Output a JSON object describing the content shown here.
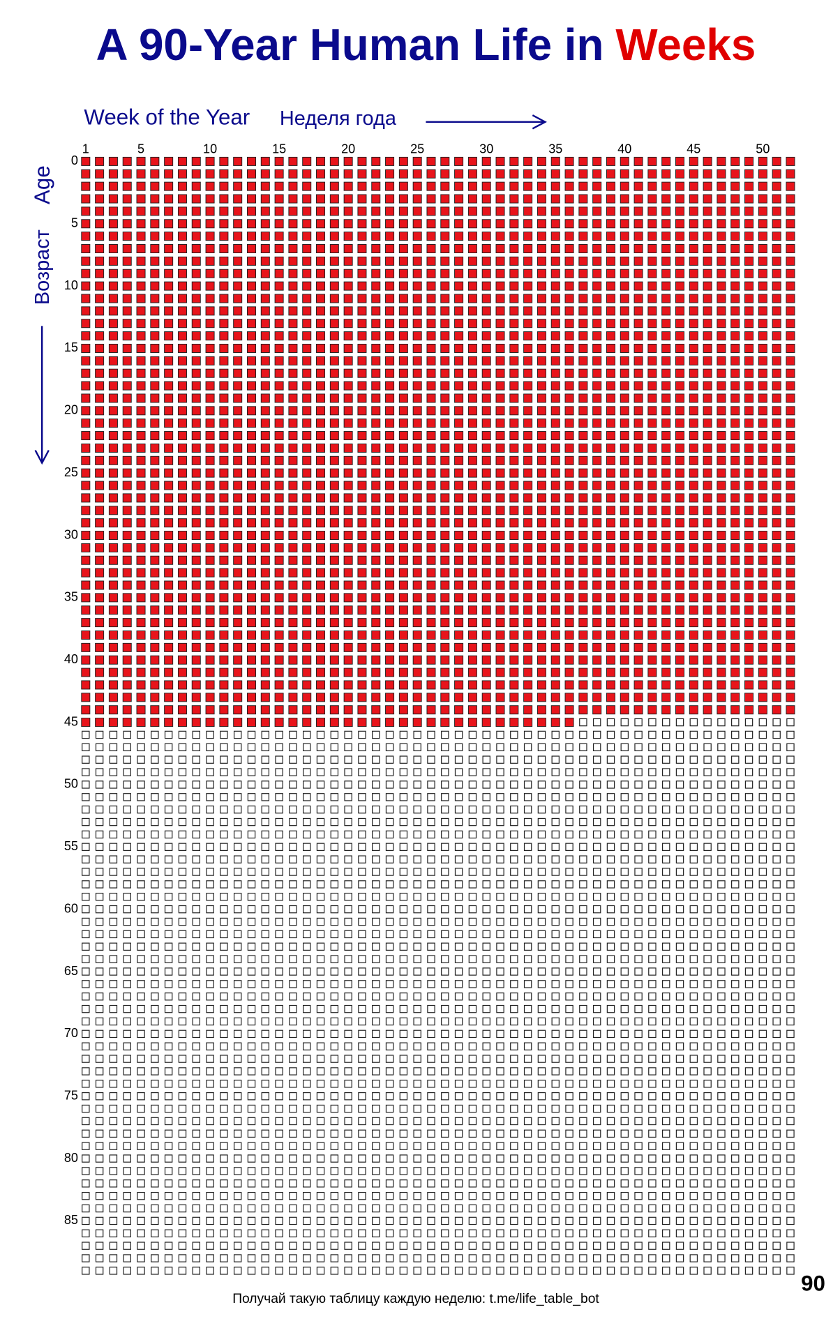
{
  "title": {
    "text": "A 90-Year Human Life in",
    "highlight": "Weeks"
  },
  "x_axis_label": "Week of the Year",
  "x_axis_label_ru": "Неделя года",
  "y_axis_label": "Age",
  "y_axis_label_ru": "Возраст",
  "weeks_per_year": 52,
  "years": 90,
  "lived_weeks": 2376,
  "week_ticks": [
    1,
    5,
    10,
    15,
    20,
    25,
    30,
    35,
    40,
    45,
    50
  ],
  "age_ticks": [
    0,
    5,
    10,
    15,
    20,
    25,
    30,
    35,
    40,
    45,
    50,
    55,
    60,
    65,
    70,
    75,
    80,
    85
  ],
  "footer": "Получай такую таблицу каждую неделю: t.me/life_table_bot"
}
